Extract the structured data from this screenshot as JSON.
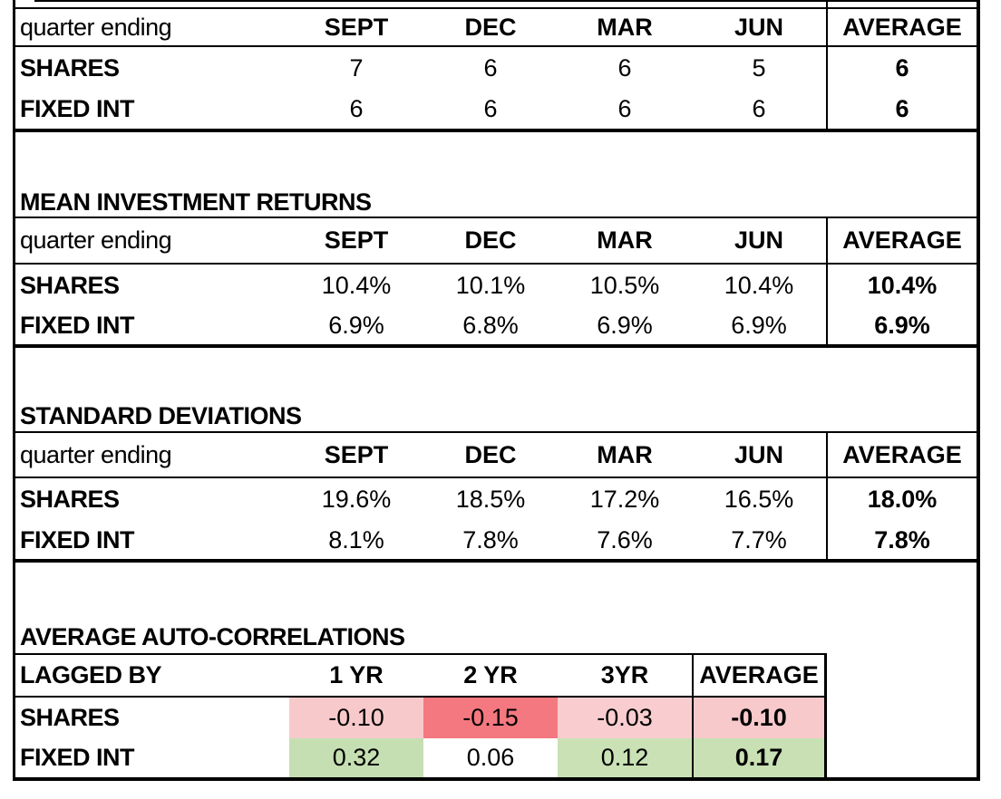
{
  "page": {
    "background": "#ffffff",
    "border_color": "#000000"
  },
  "tables": [
    {
      "name": "quarterly-observations",
      "title": "",
      "columns": [
        "quarter ending",
        "SEPT",
        "DEC",
        "MAR",
        "JUN",
        "AVERAGE"
      ],
      "rows": [
        {
          "label": "SHARES",
          "values": [
            "7",
            "6",
            "6",
            "5"
          ],
          "average": "6"
        },
        {
          "label": "FIXED INT",
          "values": [
            "6",
            "6",
            "6",
            "6"
          ],
          "average": "6"
        }
      ]
    },
    {
      "name": "mean-investment-returns",
      "title": "MEAN INVESTMENT RETURNS",
      "columns": [
        "quarter ending",
        "SEPT",
        "DEC",
        "MAR",
        "JUN",
        "AVERAGE"
      ],
      "rows": [
        {
          "label": "SHARES",
          "values": [
            "10.4%",
            "10.1%",
            "10.5%",
            "10.4%"
          ],
          "average": "10.4%"
        },
        {
          "label": "FIXED INT",
          "values": [
            "6.9%",
            "6.8%",
            "6.9%",
            "6.9%"
          ],
          "average": "6.9%"
        }
      ]
    },
    {
      "name": "standard-deviations",
      "title": "STANDARD DEVIATIONS",
      "columns": [
        "quarter ending",
        "SEPT",
        "DEC",
        "MAR",
        "JUN",
        "AVERAGE"
      ],
      "rows": [
        {
          "label": "SHARES",
          "values": [
            "19.6%",
            "18.5%",
            "17.2%",
            "16.5%"
          ],
          "average": "18.0%"
        },
        {
          "label": "FIXED INT",
          "values": [
            "8.1%",
            "7.8%",
            "7.6%",
            "7.7%"
          ],
          "average": "7.8%"
        }
      ]
    },
    {
      "name": "average-auto-correlations",
      "title": "AVERAGE AUTO-CORRELATIONS",
      "columns": [
        "LAGGED BY",
        "1 YR",
        "2 YR",
        "3YR",
        "AVERAGE"
      ],
      "rows": [
        {
          "label": "SHARES",
          "values": [
            "-0.10",
            "-0.15",
            "-0.03"
          ],
          "average": "-0.10",
          "value_fills": [
            "#F8C9CB",
            "#F4787F",
            "#F9CDCF"
          ],
          "average_fill": "#F8C9CB"
        },
        {
          "label": "FIXED INT",
          "values": [
            "0.32",
            "0.06",
            "0.12"
          ],
          "average": "0.17",
          "value_fills": [
            "#C6DFB2",
            "#FFFFFF",
            "#C9E1B5"
          ],
          "average_fill": "#C8E0B4"
        }
      ]
    }
  ]
}
